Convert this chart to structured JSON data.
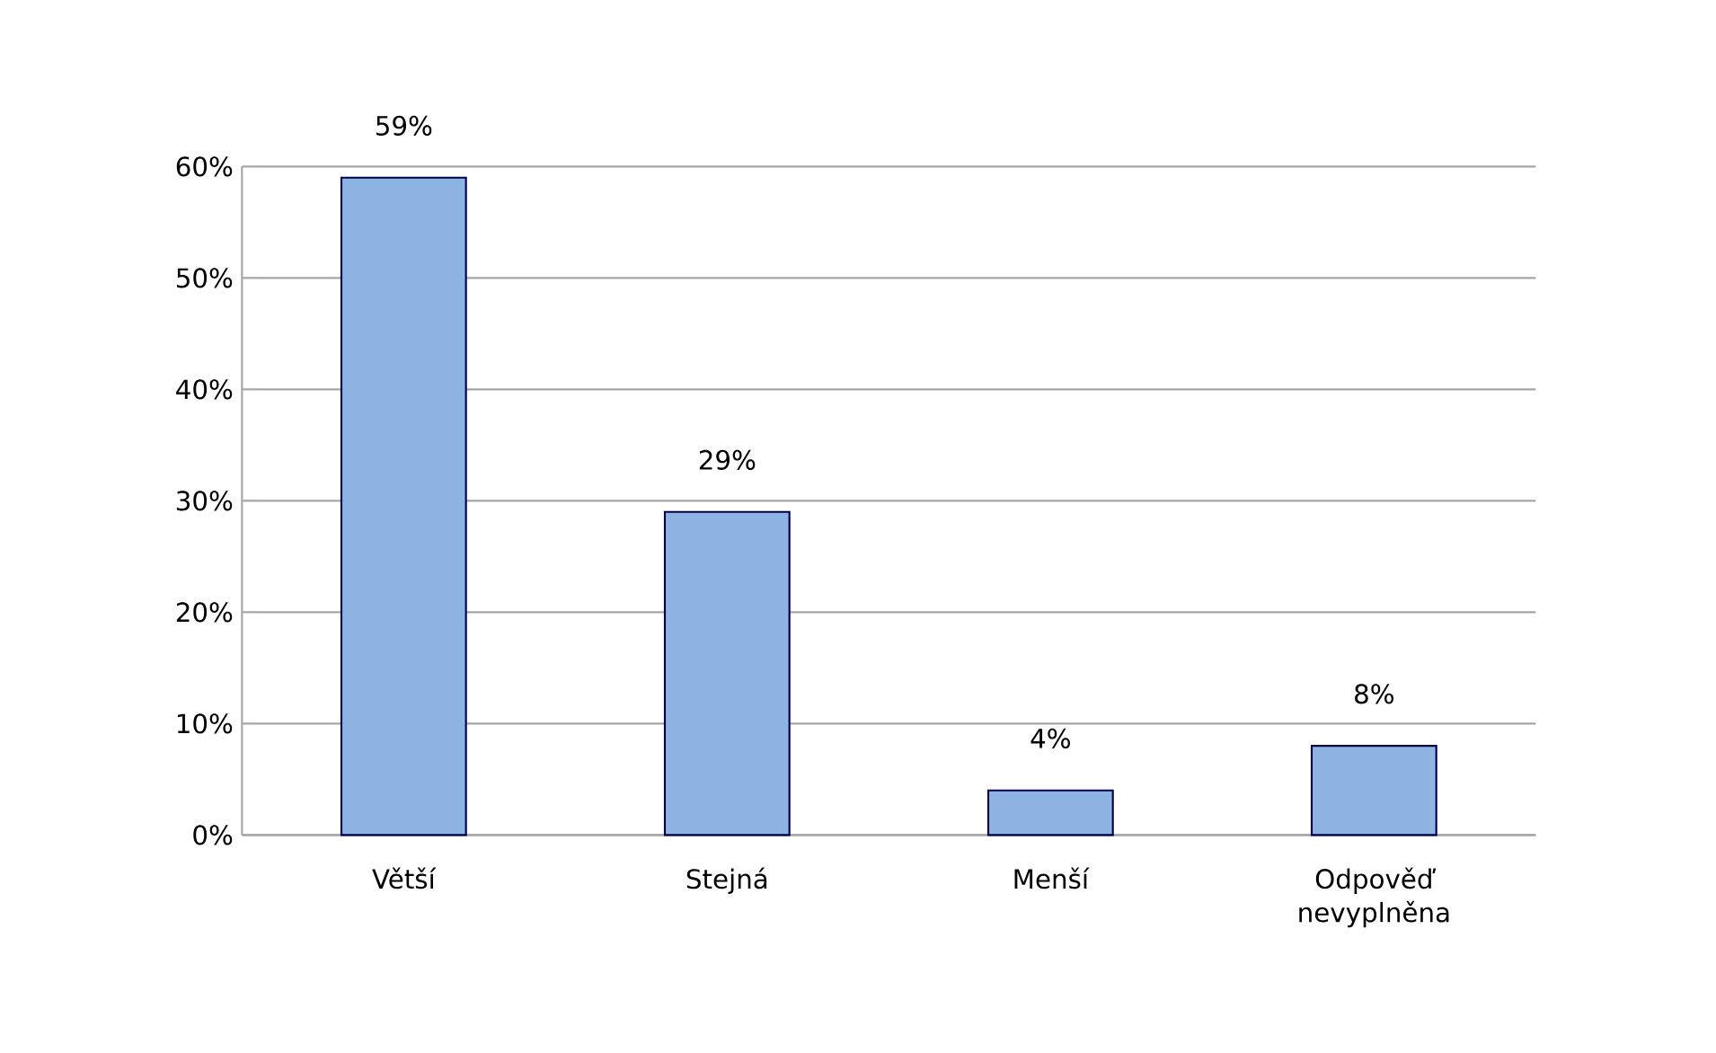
{
  "chart_data": {
    "type": "bar",
    "categories": [
      "Větší",
      "Stejná",
      "Menší",
      "Odpověď nevyplněna"
    ],
    "values": [
      59,
      29,
      4,
      8
    ],
    "value_labels": [
      "59%",
      "29%",
      "4%",
      "8%"
    ],
    "color": "#8eb4e3",
    "ylim": [
      0,
      60
    ],
    "yticks": [
      {
        "value": 0,
        "label": "0%"
      },
      {
        "value": 10,
        "label": "10%"
      },
      {
        "value": 20,
        "label": "20%"
      },
      {
        "value": 30,
        "label": "30%"
      },
      {
        "value": 40,
        "label": "40%"
      },
      {
        "value": 50,
        "label": "50%"
      },
      {
        "value": 60,
        "label": "60%"
      }
    ],
    "grid": "y"
  }
}
